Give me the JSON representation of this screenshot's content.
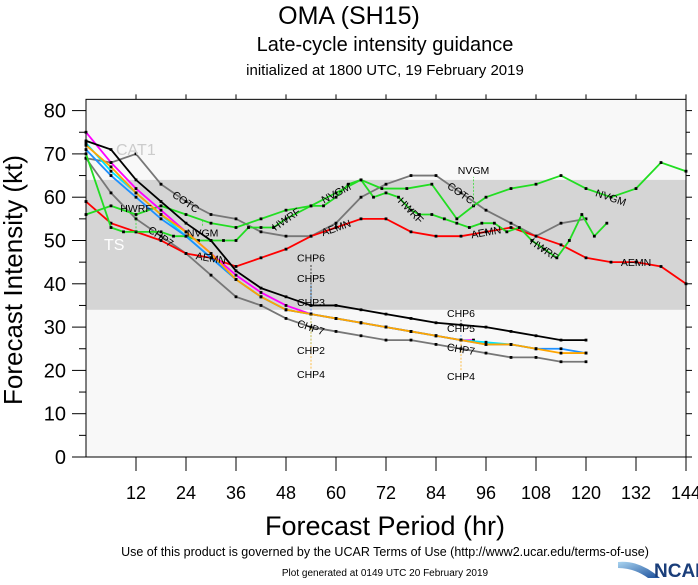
{
  "header": {
    "title": "OMA (SH15)",
    "subtitle": "Late-cycle intensity guidance",
    "initialized": "initialized at 1800 UTC, 19 February 2019"
  },
  "footer": {
    "terms": "Use of this product is governed by the UCAR Terms of Use (http://www2.ucar.edu/terms-of-use)",
    "generated": "Plot generated at 0149 UTC   20 February 2019",
    "logo_text": "NCAR"
  },
  "chart_data": {
    "type": "line",
    "xlabel": "Forecast Period (hr)",
    "ylabel": "Forecast Intensity (kt)",
    "xlim": [
      0,
      144
    ],
    "ylim": [
      0,
      82.6
    ],
    "xticks": [
      12,
      24,
      36,
      48,
      60,
      72,
      84,
      96,
      108,
      120,
      132,
      144
    ],
    "yticks": [
      0,
      10,
      20,
      30,
      40,
      50,
      60,
      70,
      80
    ],
    "bands": [
      {
        "label": "TS",
        "from": 34,
        "to": 64,
        "color": "#d5d5d5",
        "label_color": "#ffffff"
      },
      {
        "label": "CAT1",
        "from": 64,
        "to": 83,
        "color": "#f8f8f8",
        "label_color": "#cccccc"
      }
    ],
    "plot_background": "#f8f8f8",
    "series": [
      {
        "name": "CHP7",
        "color": "#777777",
        "label_at": [
          18,
          54,
          90
        ],
        "points": [
          [
            0,
            69
          ],
          [
            6,
            61
          ],
          [
            12,
            55
          ],
          [
            18,
            51
          ],
          [
            24,
            47
          ],
          [
            30,
            42
          ],
          [
            36,
            37
          ],
          [
            42,
            35
          ],
          [
            48,
            32
          ],
          [
            54,
            30
          ],
          [
            60,
            29
          ],
          [
            66,
            28
          ],
          [
            72,
            27
          ],
          [
            78,
            27
          ],
          [
            84,
            26
          ],
          [
            90,
            25
          ],
          [
            96,
            24
          ],
          [
            102,
            23
          ],
          [
            108,
            23
          ],
          [
            114,
            22
          ],
          [
            120,
            22
          ]
        ]
      },
      {
        "name": "COTC",
        "color": "#777777",
        "label_at": [
          24,
          90
        ],
        "points": [
          [
            0,
            69
          ],
          [
            6,
            68
          ],
          [
            12,
            70
          ],
          [
            18,
            63
          ],
          [
            24,
            59
          ],
          [
            30,
            56
          ],
          [
            36,
            55
          ],
          [
            42,
            52
          ],
          [
            48,
            51
          ],
          [
            54,
            51
          ],
          [
            60,
            54
          ],
          [
            66,
            60
          ],
          [
            72,
            63
          ],
          [
            78,
            65
          ],
          [
            84,
            65
          ],
          [
            90,
            61
          ],
          [
            96,
            57
          ],
          [
            102,
            54
          ],
          [
            108,
            51
          ],
          [
            114,
            54
          ],
          [
            120,
            55
          ]
        ]
      },
      {
        "name": "AEMN",
        "color": "#ff0000",
        "label_at": [
          30,
          60,
          96,
          132
        ],
        "points": [
          [
            0,
            59
          ],
          [
            6,
            54
          ],
          [
            12,
            52
          ],
          [
            18,
            50
          ],
          [
            24,
            47
          ],
          [
            30,
            46
          ],
          [
            36,
            44
          ],
          [
            42,
            46
          ],
          [
            48,
            48
          ],
          [
            54,
            51
          ],
          [
            60,
            53
          ],
          [
            66,
            55
          ],
          [
            72,
            55
          ],
          [
            78,
            52
          ],
          [
            84,
            51
          ],
          [
            90,
            51
          ],
          [
            96,
            52
          ],
          [
            102,
            53
          ],
          [
            108,
            51
          ],
          [
            114,
            49
          ],
          [
            120,
            46
          ],
          [
            126,
            45
          ],
          [
            132,
            45
          ],
          [
            138,
            44
          ],
          [
            144,
            40
          ]
        ]
      },
      {
        "name": "HWRF",
        "color": "#22dd22",
        "label_at": [
          12,
          48,
          78,
          110
        ],
        "points": [
          [
            0,
            70
          ],
          [
            6,
            53
          ],
          [
            9,
            52
          ],
          [
            12,
            52
          ],
          [
            18,
            52
          ],
          [
            21,
            51
          ],
          [
            24,
            51
          ],
          [
            27,
            50
          ],
          [
            30,
            50
          ],
          [
            33,
            50
          ],
          [
            36,
            50
          ],
          [
            39,
            53
          ],
          [
            42,
            53
          ],
          [
            45,
            53
          ],
          [
            48,
            55
          ],
          [
            54,
            58
          ],
          [
            57,
            58
          ],
          [
            60,
            60
          ],
          [
            63,
            63
          ],
          [
            66,
            64
          ],
          [
            69,
            60
          ],
          [
            72,
            61
          ],
          [
            75,
            60
          ],
          [
            78,
            57
          ],
          [
            80,
            56
          ],
          [
            83,
            56
          ],
          [
            86,
            55
          ],
          [
            89,
            54
          ],
          [
            92,
            53
          ],
          [
            95,
            54
          ],
          [
            98,
            54
          ],
          [
            101,
            52
          ],
          [
            104,
            53
          ],
          [
            107,
            50
          ],
          [
            110,
            48
          ],
          [
            113,
            46
          ],
          [
            116,
            50
          ],
          [
            119,
            56
          ],
          [
            122,
            51
          ],
          [
            125,
            54
          ]
        ]
      },
      {
        "name": "NVGM",
        "color": "#22dd22",
        "label_at": [
          28,
          60,
          93,
          126
        ],
        "points": [
          [
            0,
            56
          ],
          [
            6,
            58
          ],
          [
            12,
            56
          ],
          [
            18,
            58
          ],
          [
            24,
            56
          ],
          [
            30,
            54
          ],
          [
            36,
            53
          ],
          [
            42,
            55
          ],
          [
            48,
            57
          ],
          [
            54,
            58
          ],
          [
            60,
            61
          ],
          [
            66,
            64
          ],
          [
            71,
            62
          ],
          [
            77,
            62
          ],
          [
            83,
            63
          ],
          [
            89,
            55
          ],
          [
            93,
            58
          ],
          [
            96,
            60
          ],
          [
            102,
            62
          ],
          [
            108,
            63
          ],
          [
            114,
            65
          ],
          [
            120,
            62
          ],
          [
            126,
            60
          ],
          [
            132,
            62
          ],
          [
            138,
            68
          ],
          [
            144,
            66
          ]
        ]
      },
      {
        "name": "CHP3",
        "color": "#ff00ff",
        "label_at": [
          54
        ],
        "points": [
          [
            0,
            75
          ],
          [
            6,
            68
          ],
          [
            12,
            62
          ],
          [
            18,
            57
          ],
          [
            24,
            52
          ],
          [
            30,
            47
          ],
          [
            36,
            42
          ],
          [
            42,
            38
          ],
          [
            48,
            35
          ],
          [
            54,
            33
          ],
          [
            60,
            32
          ],
          [
            66,
            31
          ],
          [
            72,
            30
          ],
          [
            78,
            29
          ],
          [
            84,
            28
          ],
          [
            90,
            27
          ],
          [
            93,
            27
          ]
        ]
      },
      {
        "name": "CHP2",
        "color": "#00e5ff",
        "label_at": [
          54
        ],
        "points": [
          [
            0,
            72.5
          ],
          [
            6,
            66
          ],
          [
            12,
            61
          ],
          [
            18,
            56
          ],
          [
            24,
            51
          ],
          [
            30,
            46
          ],
          [
            36,
            41
          ],
          [
            42,
            37
          ],
          [
            48,
            34
          ],
          [
            54,
            33
          ],
          [
            60,
            32
          ],
          [
            66,
            31
          ],
          [
            72,
            30
          ],
          [
            78,
            29
          ],
          [
            84,
            28
          ],
          [
            90,
            27
          ],
          [
            96,
            26.5
          ],
          [
            102,
            26
          ],
          [
            108,
            25
          ]
        ]
      },
      {
        "name": "CHP5",
        "color": "#1e90ff",
        "label_at": [
          54,
          90
        ],
        "points": [
          [
            0,
            71
          ],
          [
            6,
            65
          ],
          [
            12,
            60
          ],
          [
            18,
            55
          ],
          [
            24,
            51
          ],
          [
            30,
            46
          ],
          [
            36,
            41
          ],
          [
            42,
            37
          ],
          [
            48,
            34
          ],
          [
            54,
            33
          ],
          [
            60,
            32
          ],
          [
            66,
            31
          ],
          [
            72,
            30
          ],
          [
            78,
            29
          ],
          [
            84,
            28
          ],
          [
            90,
            27
          ],
          [
            96,
            26
          ],
          [
            102,
            26
          ],
          [
            108,
            25
          ],
          [
            114,
            25
          ],
          [
            120,
            24
          ]
        ]
      },
      {
        "name": "CHP4",
        "color": "#ffa500",
        "label_at": [
          54,
          90
        ],
        "points": [
          [
            0,
            72
          ],
          [
            6,
            67
          ],
          [
            12,
            61
          ],
          [
            18,
            56
          ],
          [
            24,
            52
          ],
          [
            30,
            47
          ],
          [
            36,
            41
          ],
          [
            42,
            37
          ],
          [
            48,
            34
          ],
          [
            54,
            33
          ],
          [
            60,
            32
          ],
          [
            66,
            31
          ],
          [
            72,
            30
          ],
          [
            78,
            29
          ],
          [
            84,
            28
          ],
          [
            90,
            27
          ],
          [
            96,
            26
          ],
          [
            102,
            26
          ],
          [
            108,
            25
          ],
          [
            114,
            24
          ],
          [
            120,
            24
          ]
        ]
      },
      {
        "name": "CHP6",
        "color": "#000000",
        "label_at": [
          54,
          90
        ],
        "points": [
          [
            0,
            73
          ],
          [
            6,
            71
          ],
          [
            12,
            64
          ],
          [
            18,
            59
          ],
          [
            24,
            54
          ],
          [
            30,
            50
          ],
          [
            36,
            43
          ],
          [
            42,
            39
          ],
          [
            48,
            37
          ],
          [
            54,
            35
          ],
          [
            60,
            35
          ],
          [
            66,
            34
          ],
          [
            72,
            33
          ],
          [
            78,
            32
          ],
          [
            84,
            31
          ],
          [
            90,
            30.5
          ],
          [
            96,
            30
          ],
          [
            102,
            29
          ],
          [
            108,
            28
          ],
          [
            114,
            27
          ],
          [
            120,
            27
          ]
        ]
      }
    ]
  }
}
